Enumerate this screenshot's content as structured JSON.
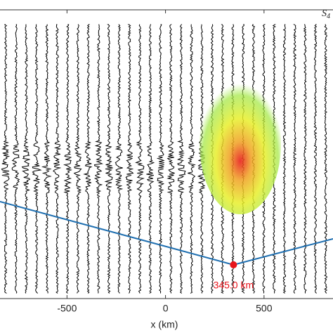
{
  "chart_data": {
    "type": "line",
    "xlabel": "x (km)",
    "xlim": [
      -840,
      850
    ],
    "ylim": [
      0,
      100
    ],
    "xticks": [
      -500,
      0,
      500
    ],
    "series": [
      {
        "color": "#1f6fb0",
        "x": [
          -840,
          345,
          850
        ],
        "values": [
          33.6,
          11.7,
          20.7
        ]
      }
    ],
    "marker": {
      "x": 345,
      "y": 11.7,
      "label": "345.0 km",
      "color": "#e8141b"
    },
    "annotation": {
      "text": "S",
      "subscript": "4"
    }
  }
}
